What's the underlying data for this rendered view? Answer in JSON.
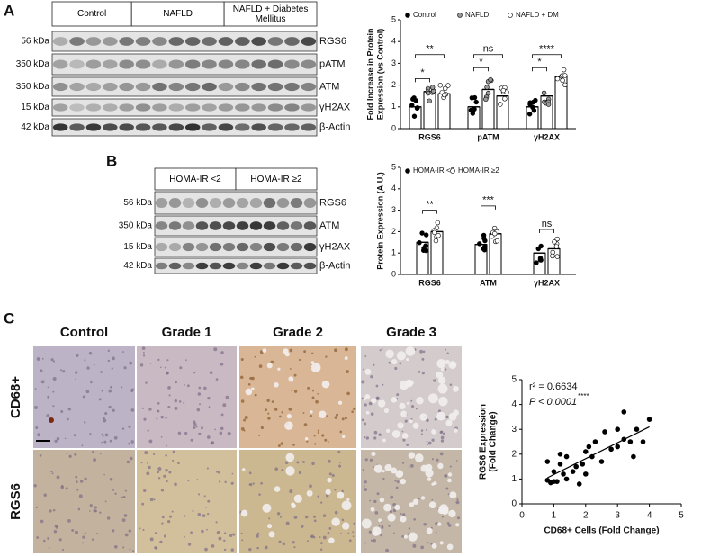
{
  "panel_labels": [
    "A",
    "B",
    "C"
  ],
  "blot_a": {
    "groups": [
      "Control",
      "NAFLD",
      "NAFLD + Diabetes Mellitus"
    ],
    "markers": [
      "56 kDa",
      "350 kDa",
      "350 kDa",
      "15 kDa",
      "42 kDa"
    ],
    "proteins": [
      "RGS6",
      "pATM",
      "ATM",
      "γH2AX",
      "β-Actin"
    ]
  },
  "blot_b": {
    "groups": [
      "HOMA-IR <2",
      "HOMA-IR ≥2"
    ],
    "markers": [
      "56 kDa",
      "350 kDa",
      "15 kDa",
      "42 kDa"
    ],
    "proteins": [
      "RGS6",
      "ATM",
      "γH2AX",
      "β-Actin"
    ]
  },
  "histology": {
    "columns": [
      "Control",
      "Grade 1",
      "Grade 2",
      "Grade 3"
    ],
    "rows": [
      "CD68+",
      "RGS6"
    ]
  },
  "chart_data": [
    {
      "type": "bar",
      "ylabel": [
        "Fold Increase in  Protein",
        "Expression (vs Control)"
      ],
      "categories": [
        "RGS6",
        "pATM",
        "γH2AX"
      ],
      "series": [
        {
          "name": "Control",
          "color": "#000000",
          "values": [
            1.0,
            1.0,
            1.0
          ]
        },
        {
          "name": "NAFLD",
          "color": "#9a9a9a",
          "values": [
            1.7,
            1.8,
            1.5
          ]
        },
        {
          "name": "NAFLD + DM",
          "color": "#ffffff",
          "values": [
            1.6,
            1.5,
            2.4
          ]
        }
      ],
      "ylim": [
        0,
        5
      ],
      "yticks": [
        0,
        1,
        2,
        3,
        4,
        5
      ],
      "annotations": [
        "*",
        "**",
        "*",
        "ns",
        "*",
        "****"
      ]
    },
    {
      "type": "bar",
      "ylabel": [
        "Protein  Expression (A.U.)"
      ],
      "categories": [
        "RGS6",
        "ATM",
        "γH2AX"
      ],
      "series": [
        {
          "name": "HOMA-IR <2",
          "color": "#000000",
          "values": [
            1.5,
            1.4,
            1.0
          ]
        },
        {
          "name": "HOMA-IR ≥2",
          "color": "#ffffff",
          "values": [
            2.0,
            1.9,
            1.2
          ]
        }
      ],
      "ylim": [
        0,
        5
      ],
      "yticks": [
        0,
        1,
        2,
        3,
        4,
        5
      ],
      "annotations": [
        "**",
        "***",
        "ns"
      ]
    },
    {
      "type": "scatter",
      "xlabel": "CD68+  Cells (Fold  Change)",
      "ylabel": [
        "RGS6 Expression",
        "(Fold Change)"
      ],
      "x": [
        0.8,
        0.8,
        0.9,
        1.0,
        1.0,
        1.1,
        1.2,
        1.2,
        1.3,
        1.4,
        1.4,
        1.6,
        1.7,
        1.8,
        1.9,
        2.0,
        2.0,
        2.1,
        2.2,
        2.3,
        2.5,
        2.6,
        2.8,
        3.0,
        3.0,
        3.2,
        3.2,
        3.4,
        3.5,
        3.6,
        3.8,
        4.0
      ],
      "y": [
        0.95,
        1.7,
        0.85,
        0.9,
        1.3,
        0.9,
        1.6,
        2.0,
        1.2,
        1.0,
        1.9,
        1.3,
        1.5,
        0.8,
        1.6,
        1.2,
        2.1,
        2.3,
        1.9,
        2.5,
        1.7,
        2.9,
        2.2,
        3.0,
        2.3,
        3.7,
        2.6,
        2.5,
        1.9,
        3.0,
        2.5,
        3.4
      ],
      "fit": {
        "x": [
          0.8,
          4.0
        ],
        "y": [
          1.05,
          3.1
        ]
      },
      "color": "#000000",
      "xlim": [
        0,
        5
      ],
      "ylim": [
        0,
        5
      ],
      "xticks": [
        0,
        1,
        2,
        3,
        4,
        5
      ],
      "yticks": [
        0,
        1,
        2,
        3,
        4,
        5
      ],
      "annotations": [
        "r² = 0.6634",
        "P < 0.0001",
        "****"
      ]
    }
  ]
}
